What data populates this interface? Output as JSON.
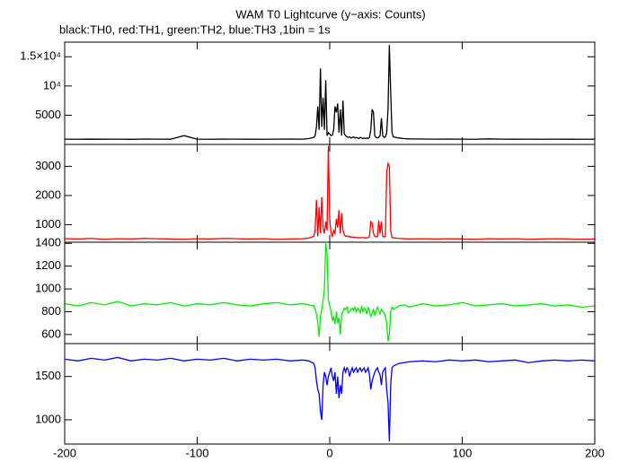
{
  "chart_data": [
    {
      "type": "line",
      "title": "WAM T0 Lightcurve (y−axis: Counts)",
      "subtitle": "black:TH0, red:TH1, green:TH2, blue:TH3 ,1bin = 1s",
      "x": [
        -200,
        -190,
        -180,
        -170,
        -160,
        -150,
        -140,
        -130,
        -120,
        -110,
        -100,
        -90,
        -80,
        -70,
        -60,
        -50,
        -40,
        -30,
        -20,
        -16,
        -12,
        -11,
        -10,
        -9,
        -8,
        -7,
        -6,
        -5,
        -4,
        -3,
        -2,
        -1,
        0,
        1,
        2,
        3,
        4,
        5,
        6,
        7,
        8,
        9,
        10,
        11,
        12,
        13,
        14,
        15,
        16,
        17,
        18,
        19,
        20,
        21,
        22,
        23,
        24,
        25,
        26,
        27,
        28,
        29,
        30,
        31,
        32,
        33,
        34,
        35,
        36,
        37,
        38,
        39,
        40,
        41,
        42,
        43,
        44,
        45,
        46,
        47,
        48,
        52,
        56,
        60,
        70,
        80,
        90,
        100,
        110,
        120,
        130,
        140,
        150,
        160,
        170,
        180,
        190,
        200
      ],
      "xlim": [
        -200,
        200
      ],
      "xticks": [
        -200,
        -100,
        0,
        100,
        200
      ],
      "ylim": [
        0,
        17500
      ],
      "yticks": [
        5000,
        {
          "value": 10000,
          "label": "10⁴"
        },
        {
          "value": 15000,
          "label": "1.5×10⁴"
        }
      ],
      "series": [
        {
          "color": "#000000",
          "values": [
            900,
            880,
            910,
            890,
            900,
            870,
            920,
            900,
            890,
            1500,
            900,
            880,
            910,
            900,
            890,
            880,
            900,
            910,
            900,
            1000,
            1200,
            1500,
            3000,
            6500,
            2500,
            13000,
            3000,
            8000,
            2500,
            11000,
            1500,
            2000,
            1800,
            1500,
            1600,
            2500,
            6500,
            5500,
            7000,
            2000,
            6000,
            1500,
            7500,
            1800,
            1500,
            1300,
            1200,
            1300,
            1100,
            1200,
            1300,
            1100,
            1200,
            1100,
            1000,
            1200,
            1100,
            1000,
            1100,
            1000,
            1100,
            1000,
            1200,
            2500,
            6000,
            5500,
            1500,
            1200,
            1100,
            1200,
            1500,
            4500,
            1500,
            1200,
            1300,
            2000,
            6000,
            17000,
            9000,
            2000,
            1300,
            1100,
            1000,
            950,
            920,
            900,
            910,
            900,
            880,
            950,
            900,
            890,
            900,
            880,
            900,
            890,
            880,
            900
          ]
        }
      ]
    },
    {
      "type": "line",
      "x": [
        -200,
        -190,
        -180,
        -170,
        -160,
        -150,
        -140,
        -130,
        -120,
        -110,
        -100,
        -90,
        -80,
        -70,
        -60,
        -50,
        -40,
        -30,
        -20,
        -16,
        -12,
        -11,
        -10,
        -9,
        -8,
        -7,
        -6,
        -5,
        -4,
        -3,
        -2,
        -1,
        0,
        1,
        2,
        3,
        4,
        5,
        6,
        7,
        8,
        9,
        10,
        11,
        12,
        13,
        14,
        15,
        16,
        17,
        18,
        19,
        20,
        21,
        22,
        23,
        24,
        25,
        26,
        27,
        28,
        29,
        30,
        31,
        32,
        33,
        34,
        35,
        36,
        37,
        38,
        39,
        40,
        41,
        42,
        43,
        44,
        45,
        46,
        47,
        48,
        52,
        56,
        60,
        70,
        80,
        90,
        100,
        110,
        120,
        130,
        140,
        150,
        160,
        170,
        180,
        190,
        200
      ],
      "xlim": [
        -200,
        200
      ],
      "xticks": [
        -200,
        -100,
        0,
        100,
        200
      ],
      "ylim": [
        400,
        3750
      ],
      "yticks": [
        1000,
        2000,
        3000
      ],
      "series": [
        {
          "color": "#ff0000",
          "values": [
            520,
            510,
            530,
            500,
            520,
            510,
            530,
            520,
            510,
            500,
            520,
            510,
            530,
            520,
            510,
            520,
            500,
            510,
            520,
            540,
            600,
            800,
            1850,
            600,
            1600,
            700,
            1950,
            900,
            700,
            1100,
            800,
            3700,
            1200,
            700,
            600,
            800,
            700,
            1200,
            900,
            1500,
            700,
            1400,
            800,
            650,
            600,
            620,
            580,
            600,
            570,
            580,
            560,
            570,
            560,
            550,
            560,
            550,
            560,
            550,
            560,
            540,
            550,
            560,
            600,
            1100,
            1050,
            700,
            600,
            580,
            600,
            1150,
            700,
            1100,
            600,
            580,
            600,
            2800,
            3100,
            3000,
            800,
            560,
            550,
            530,
            520,
            510,
            520,
            510,
            520,
            510,
            500,
            520,
            510,
            520,
            500,
            510,
            520,
            510,
            500,
            510
          ]
        }
      ]
    },
    {
      "type": "line",
      "x": [
        -200,
        -190,
        -180,
        -170,
        -160,
        -150,
        -140,
        -130,
        -120,
        -110,
        -100,
        -90,
        -80,
        -70,
        -60,
        -50,
        -40,
        -30,
        -20,
        -16,
        -12,
        -11,
        -10,
        -9,
        -8,
        -7,
        -6,
        -5,
        -4,
        -3,
        -2,
        -1,
        0,
        1,
        2,
        3,
        4,
        5,
        6,
        7,
        8,
        9,
        10,
        11,
        12,
        13,
        14,
        15,
        16,
        17,
        18,
        19,
        20,
        21,
        22,
        23,
        24,
        25,
        26,
        27,
        28,
        29,
        30,
        31,
        32,
        33,
        34,
        35,
        36,
        37,
        38,
        39,
        40,
        41,
        42,
        43,
        44,
        45,
        46,
        47,
        48,
        52,
        56,
        60,
        70,
        80,
        90,
        100,
        110,
        120,
        130,
        140,
        150,
        160,
        170,
        180,
        190,
        200
      ],
      "xlim": [
        -200,
        200
      ],
      "xticks": [
        -200,
        -100,
        0,
        100,
        200
      ],
      "ylim": [
        520,
        1410
      ],
      "yticks": [
        600,
        800,
        1000,
        1200,
        1400
      ],
      "series": [
        {
          "color": "#00ee00",
          "values": [
            870,
            850,
            880,
            860,
            890,
            850,
            870,
            860,
            880,
            850,
            870,
            860,
            880,
            860,
            850,
            870,
            880,
            860,
            870,
            860,
            850,
            820,
            780,
            700,
            580,
            760,
            820,
            900,
            1000,
            1400,
            1300,
            900,
            860,
            800,
            720,
            760,
            690,
            800,
            700,
            750,
            600,
            780,
            800,
            830,
            820,
            840,
            790,
            800,
            820,
            830,
            810,
            840,
            800,
            830,
            820,
            790,
            840,
            800,
            830,
            820,
            780,
            840,
            800,
            760,
            790,
            820,
            770,
            800,
            840,
            810,
            780,
            820,
            800,
            790,
            760,
            700,
            540,
            600,
            800,
            840,
            820,
            850,
            860,
            840,
            870,
            850,
            860,
            880,
            850,
            860,
            870,
            850,
            860,
            870,
            850,
            860,
            840,
            850
          ]
        }
      ]
    },
    {
      "type": "line",
      "x": [
        -200,
        -190,
        -180,
        -170,
        -160,
        -150,
        -140,
        -130,
        -120,
        -110,
        -100,
        -90,
        -80,
        -70,
        -60,
        -50,
        -40,
        -30,
        -20,
        -16,
        -12,
        -11,
        -10,
        -9,
        -8,
        -7,
        -6,
        -5,
        -4,
        -3,
        -2,
        -1,
        0,
        1,
        2,
        3,
        4,
        5,
        6,
        7,
        8,
        9,
        10,
        11,
        12,
        13,
        14,
        15,
        16,
        17,
        18,
        19,
        20,
        21,
        22,
        23,
        24,
        25,
        26,
        27,
        28,
        29,
        30,
        31,
        32,
        33,
        34,
        35,
        36,
        37,
        38,
        39,
        40,
        41,
        42,
        43,
        44,
        45,
        46,
        47,
        48,
        52,
        56,
        60,
        70,
        80,
        90,
        100,
        110,
        120,
        130,
        140,
        150,
        160,
        170,
        180,
        190,
        200
      ],
      "xlim": [
        -200,
        200
      ],
      "xticks": [
        -200,
        -100,
        0,
        100,
        200
      ],
      "ylim": [
        720,
        1880
      ],
      "yticks": [
        1000,
        1500
      ],
      "series": [
        {
          "color": "#0000ff",
          "values": [
            1700,
            1680,
            1710,
            1690,
            1720,
            1680,
            1700,
            1690,
            1710,
            1680,
            1700,
            1690,
            1710,
            1680,
            1700,
            1690,
            1700,
            1680,
            1690,
            1680,
            1650,
            1600,
            1450,
            1350,
            1300,
            1100,
            1000,
            1400,
            1550,
            1500,
            1400,
            1500,
            1550,
            1600,
            1500,
            1450,
            1550,
            1300,
            1500,
            1250,
            1400,
            1300,
            1550,
            1600,
            1550,
            1600,
            1580,
            1500,
            1560,
            1600,
            1550,
            1580,
            1600,
            1550,
            1580,
            1600,
            1560,
            1580,
            1600,
            1550,
            1570,
            1600,
            1520,
            1350,
            1450,
            1500,
            1550,
            1580,
            1600,
            1550,
            1520,
            1400,
            1550,
            1580,
            1600,
            1350,
            1200,
            750,
            1400,
            1600,
            1620,
            1650,
            1660,
            1670,
            1680,
            1670,
            1690,
            1680,
            1690,
            1670,
            1680,
            1690,
            1660,
            1680,
            1690,
            1680,
            1690,
            1680
          ]
        }
      ]
    }
  ]
}
